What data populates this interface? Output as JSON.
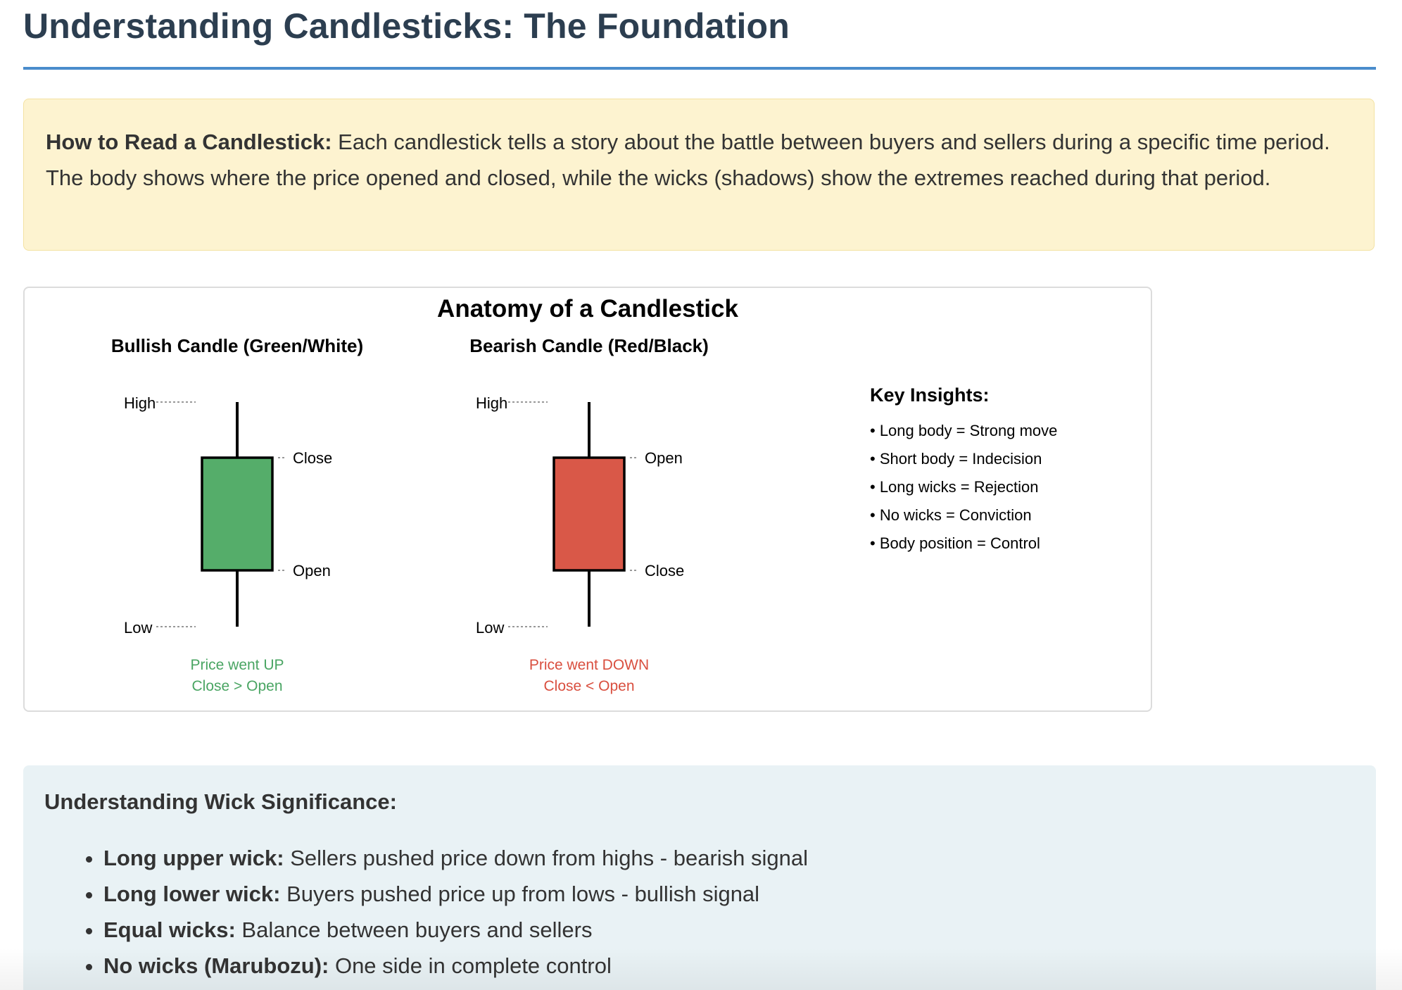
{
  "page": {
    "title": "Understanding Candlesticks: The Foundation"
  },
  "info": {
    "lead": "How to Read a Candlestick:",
    "text": " Each candlestick tells a story about the battle between buyers and sellers during a specific time period. The body shows where the price opened and closed, while the wicks (shadows) show the extremes reached during that period."
  },
  "diagram": {
    "title": "Anatomy of a Candlestick",
    "bullish": {
      "heading": "Bullish Candle (Green/White)",
      "high_label": "High",
      "top_label": "Close",
      "bottom_label": "Open",
      "low_label": "Low",
      "caption_line1": "Price went UP",
      "caption_line2": "Close > Open",
      "body_color": "#55ad6a",
      "caption_color": "#4aa563"
    },
    "bearish": {
      "heading": "Bearish Candle (Red/Black)",
      "high_label": "High",
      "top_label": "Open",
      "bottom_label": "Close",
      "low_label": "Low",
      "caption_line1": "Price went DOWN",
      "caption_line2": "Close < Open",
      "body_color": "#d95848",
      "caption_color": "#d94f3f"
    },
    "insights": {
      "heading": "Key Insights:",
      "items": [
        "• Long body = Strong move",
        "• Short body = Indecision",
        "• Long wicks = Rejection",
        "• No wicks = Conviction",
        "• Body position = Control"
      ]
    }
  },
  "wicks": {
    "heading": "Understanding Wick Significance:",
    "items": [
      {
        "term": "Long upper wick:",
        "desc": " Sellers pushed price down from highs - bearish signal"
      },
      {
        "term": "Long lower wick:",
        "desc": " Buyers pushed price up from lows - bullish signal"
      },
      {
        "term": "Equal wicks:",
        "desc": " Balance between buyers and sellers"
      },
      {
        "term": "No wicks (Marubozu):",
        "desc": " One side in complete control"
      }
    ]
  },
  "colors": {
    "title": "#2c3e50",
    "rule": "#4a8ccc",
    "info_bg": "#fdf3d0",
    "wick_bg": "#e9f2f5"
  }
}
